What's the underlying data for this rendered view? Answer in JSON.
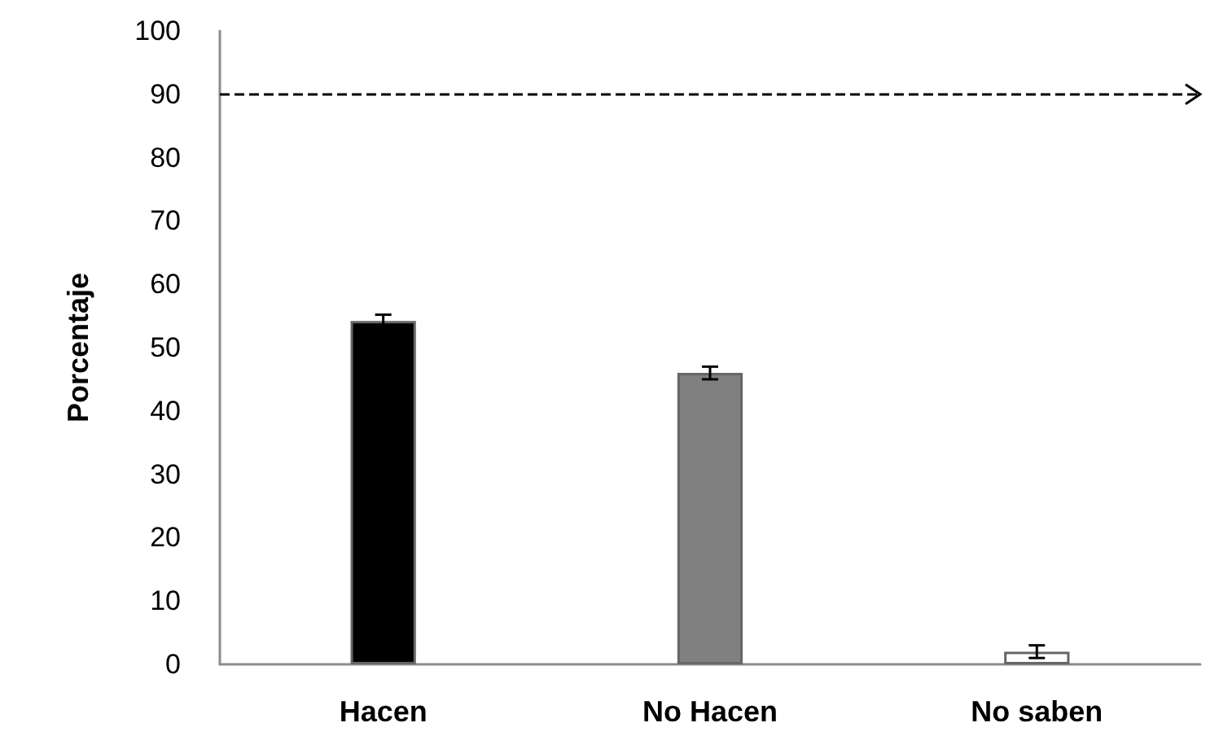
{
  "chart_data": {
    "type": "bar",
    "ylabel": "Porcentaje",
    "categories": [
      "Hacen",
      "No Hacen",
      "No saben"
    ],
    "values": [
      54.2,
      46,
      2
    ],
    "colors": [
      "#000000",
      "#808080",
      "#ffffff"
    ],
    "errors": [
      1,
      1,
      1
    ],
    "ylim": [
      0,
      100
    ],
    "yticks": [
      0,
      10,
      20,
      30,
      40,
      50,
      60,
      70,
      80,
      90,
      100
    ],
    "ref_lines": [
      {
        "axis": "y",
        "value": 90,
        "color": "#000000",
        "line_style": "dashed"
      }
    ],
    "grid": false
  }
}
